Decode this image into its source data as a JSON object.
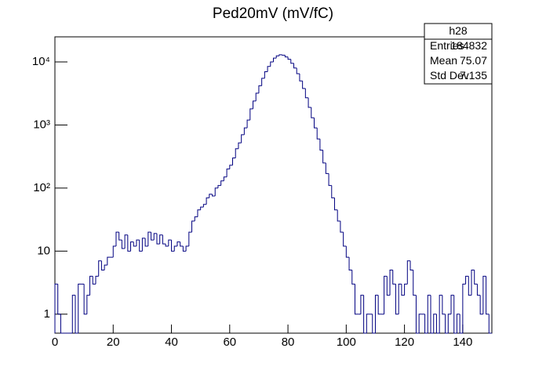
{
  "chart_data": {
    "type": "histogram",
    "title": "Ped20mV (mV/fC)",
    "color": "#000080",
    "log_y": true,
    "xlim": [
      0,
      150
    ],
    "xticks": [
      0,
      20,
      40,
      60,
      80,
      100,
      120,
      140
    ],
    "ylim": [
      0.5,
      25000
    ],
    "yticks": [
      1,
      10,
      {
        "value": 100,
        "label": "10²"
      },
      {
        "value": 1000,
        "label": "10³"
      },
      {
        "value": 10000,
        "label": "10⁴"
      }
    ],
    "bins": [
      0,
      1,
      2,
      3,
      4,
      5,
      6,
      7,
      8,
      9,
      10,
      11,
      12,
      13,
      14,
      15,
      16,
      17,
      18,
      19,
      20,
      21,
      22,
      23,
      24,
      25,
      26,
      27,
      28,
      29,
      30,
      31,
      32,
      33,
      34,
      35,
      36,
      37,
      38,
      39,
      40,
      41,
      42,
      43,
      44,
      45,
      46,
      47,
      48,
      49,
      50,
      51,
      52,
      53,
      54,
      55,
      56,
      57,
      58,
      59,
      60,
      61,
      62,
      63,
      64,
      65,
      66,
      67,
      68,
      69,
      70,
      71,
      72,
      73,
      74,
      75,
      76,
      77,
      78,
      79,
      80,
      81,
      82,
      83,
      84,
      85,
      86,
      87,
      88,
      89,
      90,
      91,
      92,
      93,
      94,
      95,
      96,
      97,
      98,
      99,
      100,
      101,
      102,
      103,
      104,
      105,
      106,
      107,
      108,
      109,
      110,
      111,
      112,
      113,
      114,
      115,
      116,
      117,
      118,
      119,
      120,
      121,
      122,
      123,
      124,
      125,
      126,
      127,
      128,
      129,
      130,
      131,
      132,
      133,
      134,
      135,
      136,
      137,
      138,
      139,
      140,
      141,
      142,
      143,
      144,
      145,
      146,
      147,
      148,
      149,
      150
    ],
    "values": [
      3,
      1,
      0,
      0,
      0,
      0,
      2,
      0,
      3,
      3,
      1,
      2,
      4,
      3,
      4,
      7,
      5,
      6,
      8,
      8,
      12,
      20,
      15,
      11,
      18,
      10,
      14,
      12,
      15,
      10,
      16,
      12,
      20,
      15,
      19,
      13,
      18,
      13,
      12,
      15,
      10,
      12,
      14,
      12,
      10,
      12,
      20,
      30,
      35,
      45,
      50,
      55,
      70,
      80,
      75,
      100,
      110,
      130,
      150,
      200,
      230,
      300,
      420,
      520,
      700,
      900,
      1200,
      1800,
      2400,
      3200,
      4200,
      5500,
      7000,
      8500,
      10000,
      11500,
      12500,
      13000,
      12800,
      12000,
      11000,
      9500,
      8000,
      6500,
      5000,
      3800,
      2700,
      1900,
      1300,
      900,
      600,
      400,
      250,
      170,
      110,
      70,
      45,
      30,
      20,
      12,
      8,
      5,
      3,
      1,
      1,
      2,
      0,
      1,
      1,
      0,
      2,
      1,
      1,
      4,
      2,
      5,
      3,
      1,
      3,
      2,
      3,
      7,
      5,
      2,
      0,
      1,
      1,
      0,
      2,
      0,
      1,
      0,
      2,
      1,
      0,
      1,
      2,
      0,
      1,
      0,
      3,
      4,
      2,
      5,
      3,
      2,
      1,
      4,
      1,
      0
    ],
    "stats": {
      "name": "h28",
      "rows": [
        [
          "Entries",
          "184832"
        ],
        [
          "Mean",
          "75.07"
        ],
        [
          "Std Dev",
          "7.135"
        ]
      ]
    }
  }
}
